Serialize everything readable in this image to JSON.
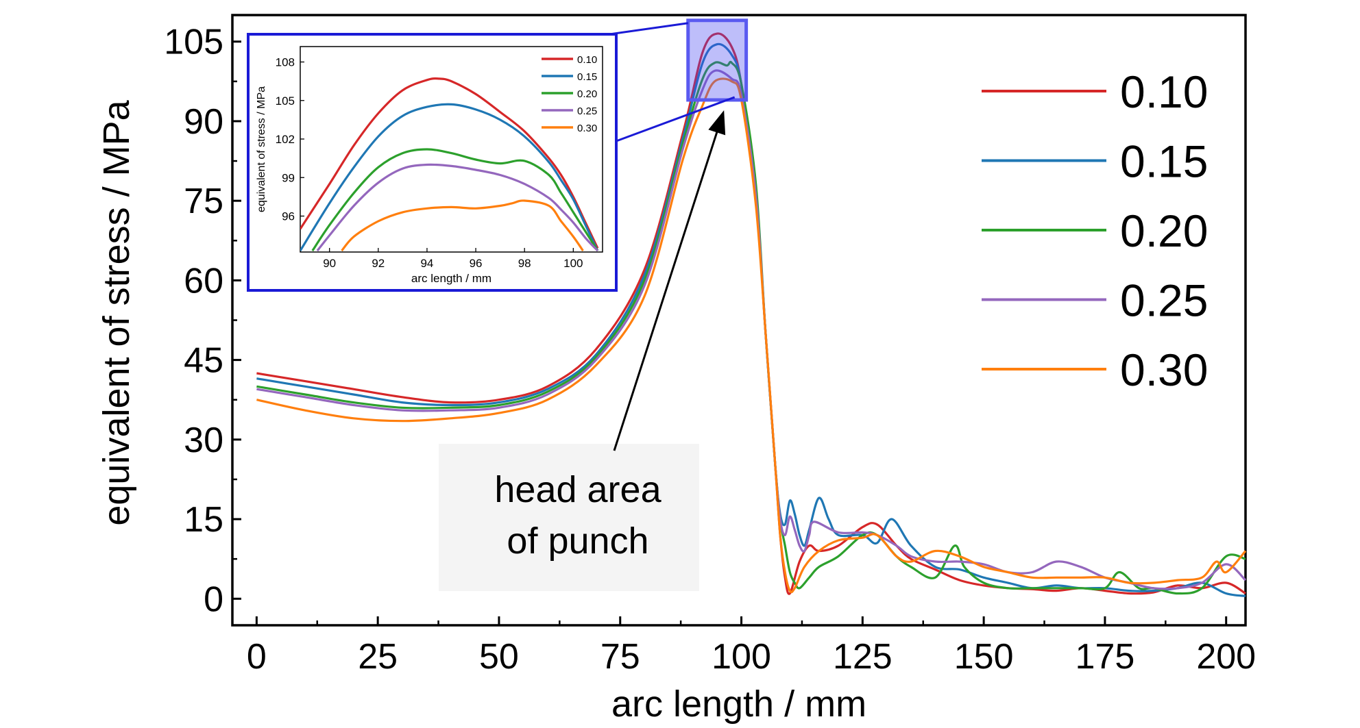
{
  "chart_data": {
    "type": "line",
    "xlabel": "arc length / mm",
    "ylabel": "equivalent of stress / MPa",
    "xlim": [
      -5,
      204
    ],
    "ylim": [
      -5,
      110
    ],
    "xticks": [
      0,
      25,
      50,
      75,
      100,
      125,
      150,
      175,
      200
    ],
    "yticks": [
      0,
      15,
      30,
      45,
      60,
      75,
      90,
      105
    ],
    "grid": false,
    "legend_position": "right",
    "annotation": {
      "line1": "head area",
      "line2": "of punch",
      "points_to": [
        95,
        94
      ]
    },
    "highlight_region": {
      "x": [
        89,
        101
      ],
      "y": [
        94,
        109
      ]
    },
    "series": [
      {
        "name": "0.10",
        "color": "#d62728",
        "x": [
          0,
          10,
          20,
          30,
          40,
          50,
          60,
          70,
          80,
          88,
          92,
          95,
          98,
          100,
          103,
          105,
          107,
          108,
          109,
          110,
          112,
          114,
          116,
          120,
          125,
          128,
          132,
          135,
          140,
          145,
          150,
          155,
          160,
          165,
          170,
          175,
          180,
          185,
          190,
          195,
          200,
          204
        ],
        "y": [
          42.5,
          41,
          39.5,
          38,
          37,
          37.5,
          40,
          47,
          62,
          88,
          103,
          106.5,
          104,
          97,
          76,
          50,
          25,
          12,
          4,
          1,
          7,
          10,
          9,
          10,
          13.5,
          14,
          10,
          7.5,
          5.5,
          3.5,
          2.5,
          2,
          1.8,
          1.5,
          2,
          1.5,
          1,
          1.2,
          2.5,
          2,
          3,
          1
        ]
      },
      {
        "name": "0.15",
        "color": "#1f77b4",
        "x": [
          0,
          10,
          20,
          30,
          40,
          50,
          60,
          70,
          80,
          88,
          92,
          95,
          98,
          100,
          103,
          105,
          107,
          108,
          109,
          110,
          111,
          112,
          113,
          114,
          116,
          118,
          120,
          125,
          128,
          131,
          135,
          140,
          145,
          150,
          155,
          160,
          165,
          170,
          175,
          180,
          185,
          190,
          195,
          200,
          204
        ],
        "y": [
          41.5,
          40,
          38.5,
          37,
          36.5,
          37,
          39.5,
          46,
          61,
          87,
          101,
          104.5,
          102.5,
          97,
          76,
          50,
          25,
          16,
          14,
          18.5,
          16,
          12,
          10,
          13,
          19,
          15,
          12,
          12,
          10.5,
          15,
          10,
          6,
          5.5,
          4,
          3,
          2,
          2.5,
          2,
          2,
          1.5,
          1.5,
          2,
          3,
          1,
          0.5
        ]
      },
      {
        "name": "0.20",
        "color": "#2ca02c",
        "x": [
          0,
          10,
          20,
          30,
          40,
          50,
          60,
          70,
          80,
          88,
          92,
          94.5,
          97,
          98,
          100,
          103,
          105,
          107,
          108,
          109,
          110,
          111,
          112,
          114,
          116,
          120,
          125,
          128,
          132,
          135,
          140,
          144,
          146,
          150,
          155,
          160,
          165,
          170,
          175,
          178,
          182,
          185,
          190,
          195,
          200,
          204
        ],
        "y": [
          40,
          38.5,
          37,
          36,
          36,
          36.5,
          39,
          45.5,
          60,
          86,
          98,
          101,
          100.5,
          101,
          97,
          78,
          50,
          25,
          15,
          10,
          5,
          3,
          2,
          4,
          6,
          8,
          12,
          12,
          8,
          6,
          4,
          10,
          6,
          3,
          2,
          2,
          2,
          2,
          2,
          5,
          2,
          2,
          1,
          2,
          8,
          7.5
        ]
      },
      {
        "name": "0.25",
        "color": "#9467bd",
        "x": [
          0,
          10,
          20,
          30,
          40,
          50,
          60,
          70,
          80,
          88,
          92,
          94.5,
          98,
          100,
          103,
          105,
          107,
          108,
          109,
          110,
          111,
          112,
          113,
          114,
          115,
          120,
          125,
          128,
          132,
          135,
          140,
          145,
          150,
          155,
          160,
          165,
          170,
          175,
          180,
          185,
          190,
          195,
          200,
          204
        ],
        "y": [
          39.5,
          38,
          36.5,
          35.5,
          35.5,
          36,
          38.5,
          45,
          59,
          85,
          96,
          99.5,
          98,
          95,
          76,
          50,
          25,
          15,
          12,
          15.5,
          13,
          10,
          9,
          12,
          14.5,
          12.5,
          12.5,
          12,
          10,
          8,
          7,
          7,
          6.5,
          5,
          5,
          7,
          6,
          4,
          3,
          2,
          2,
          3,
          6.5,
          3.5
        ]
      },
      {
        "name": "0.30",
        "color": "#ff7f0e",
        "x": [
          0,
          10,
          20,
          30,
          40,
          50,
          60,
          70,
          80,
          88,
          92,
          94.5,
          98,
          100,
          103,
          105,
          107,
          108,
          109,
          110,
          111,
          113,
          116,
          120,
          125,
          128,
          132,
          135,
          140,
          145,
          150,
          155,
          160,
          165,
          170,
          175,
          180,
          185,
          190,
          195,
          198,
          200,
          204
        ],
        "y": [
          37.5,
          35.5,
          34,
          33.5,
          34,
          35,
          37.5,
          44,
          57,
          83,
          93,
          97.5,
          97.5,
          94,
          74,
          50,
          25,
          12,
          5,
          1.5,
          2,
          6,
          9,
          11,
          11.5,
          12,
          8,
          7,
          9,
          8,
          6,
          5,
          4,
          4,
          4,
          4,
          3,
          3,
          3.5,
          4,
          7,
          5,
          9
        ]
      }
    ]
  },
  "inset": {
    "xlabel": "arc length / mm",
    "ylabel": "equivalent of stress / MPa",
    "xlim": [
      88.8,
      101.2
    ],
    "ylim": [
      93.2,
      109.2
    ],
    "xticks": [
      90,
      92,
      94,
      96,
      98,
      100
    ],
    "yticks": [
      96,
      99,
      102,
      105,
      108
    ],
    "legend_position": "top-right",
    "series": [
      {
        "name": "0.10",
        "color": "#d62728",
        "x": [
          88.8,
          90,
          91,
          92,
          93,
          94,
          94.5,
          95,
          96,
          97,
          98,
          99,
          99.5,
          100,
          100.5,
          101
        ],
        "y": [
          95,
          98.5,
          101.5,
          104,
          105.8,
          106.6,
          106.7,
          106.5,
          105.5,
          104.1,
          102.6,
          100.5,
          99.2,
          97.5,
          95.5,
          93.5
        ]
      },
      {
        "name": "0.15",
        "color": "#1f77b4",
        "x": [
          88.8,
          90,
          91,
          92,
          93,
          94,
          95,
          96,
          97,
          98,
          99,
          99.5,
          100,
          100.5,
          101
        ],
        "y": [
          93.3,
          97,
          99.8,
          102.2,
          103.8,
          104.5,
          104.7,
          104.3,
          103.5,
          102.2,
          100.2,
          98.8,
          97.3,
          95.3,
          93.3
        ]
      },
      {
        "name": "0.20",
        "color": "#2ca02c",
        "x": [
          89.3,
          90,
          91,
          92,
          93,
          94,
          95,
          96,
          97,
          98,
          99,
          99.5,
          100,
          100.5,
          101
        ],
        "y": [
          93.3,
          95.3,
          97.8,
          99.8,
          100.9,
          101.2,
          100.9,
          100.4,
          100.1,
          100.3,
          99.2,
          97.8,
          96.3,
          94.8,
          93.3
        ]
      },
      {
        "name": "0.25",
        "color": "#9467bd",
        "x": [
          89.5,
          90,
          91,
          92,
          93,
          94,
          95,
          96,
          97,
          98,
          99,
          99.5,
          100,
          100.5,
          101
        ],
        "y": [
          93.3,
          94.5,
          96.8,
          98.6,
          99.7,
          100,
          99.9,
          99.6,
          99.2,
          98.5,
          97.4,
          96.5,
          95.5,
          94.3,
          93.3
        ]
      },
      {
        "name": "0.30",
        "color": "#ff7f0e",
        "x": [
          90.5,
          91,
          92,
          93,
          94,
          95,
          96,
          97,
          97.5,
          98,
          99,
          99.5,
          100,
          100.4
        ],
        "y": [
          93.3,
          94.4,
          95.6,
          96.3,
          96.6,
          96.7,
          96.6,
          96.8,
          97,
          97.2,
          96.8,
          95.6,
          94.4,
          93.3
        ]
      }
    ]
  }
}
